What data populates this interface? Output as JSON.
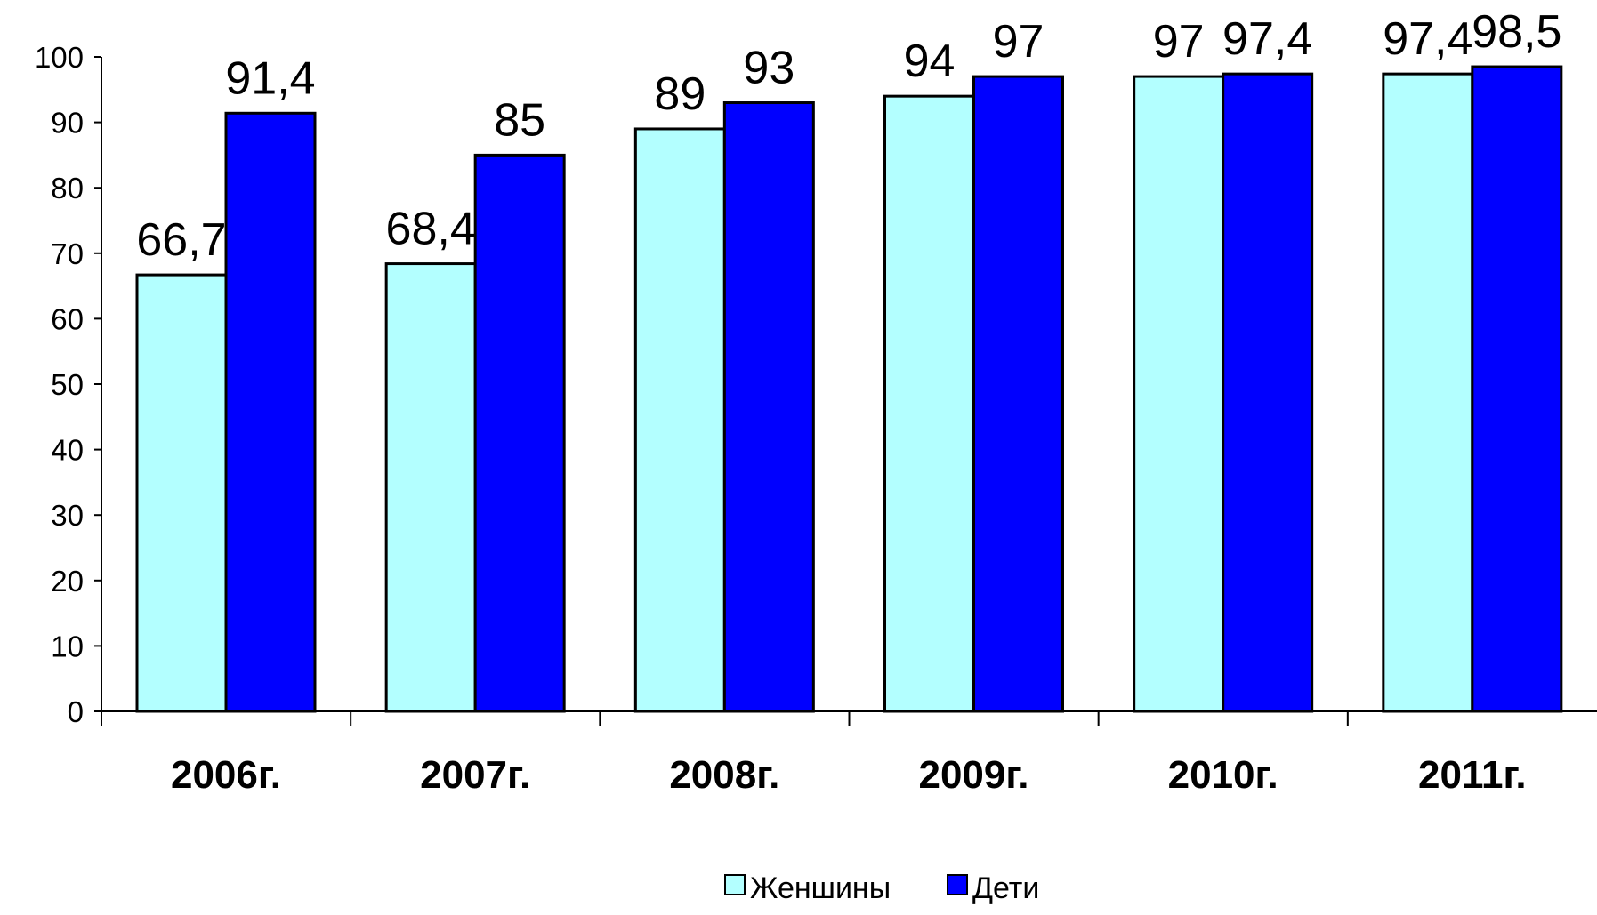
{
  "chart_data": {
    "type": "bar",
    "categories": [
      "2006г.",
      "2007г.",
      "2008г.",
      "2009г.",
      "2010г.",
      "2011г."
    ],
    "series": [
      {
        "name": "Женшины",
        "values": [
          66.7,
          68.4,
          89,
          94,
          97,
          97.4
        ],
        "value_labels": [
          "66,7",
          "68,4",
          "89",
          "94",
          "97",
          "97,4"
        ],
        "color": "#B3FFFF"
      },
      {
        "name": "Дети",
        "values": [
          91.4,
          85,
          93,
          97,
          97.4,
          98.5
        ],
        "value_labels": [
          "91,4",
          "85",
          "93",
          "97",
          "97,4",
          "98,5"
        ],
        "color": "#0000FF"
      }
    ],
    "ylim": [
      0,
      100
    ],
    "yticks": [
      "0",
      "10",
      "20",
      "30",
      "40",
      "50",
      "60",
      "70",
      "80",
      "90",
      "100"
    ],
    "title": "",
    "xlabel": "",
    "ylabel": "",
    "grid": false,
    "legend_position": "bottom"
  }
}
